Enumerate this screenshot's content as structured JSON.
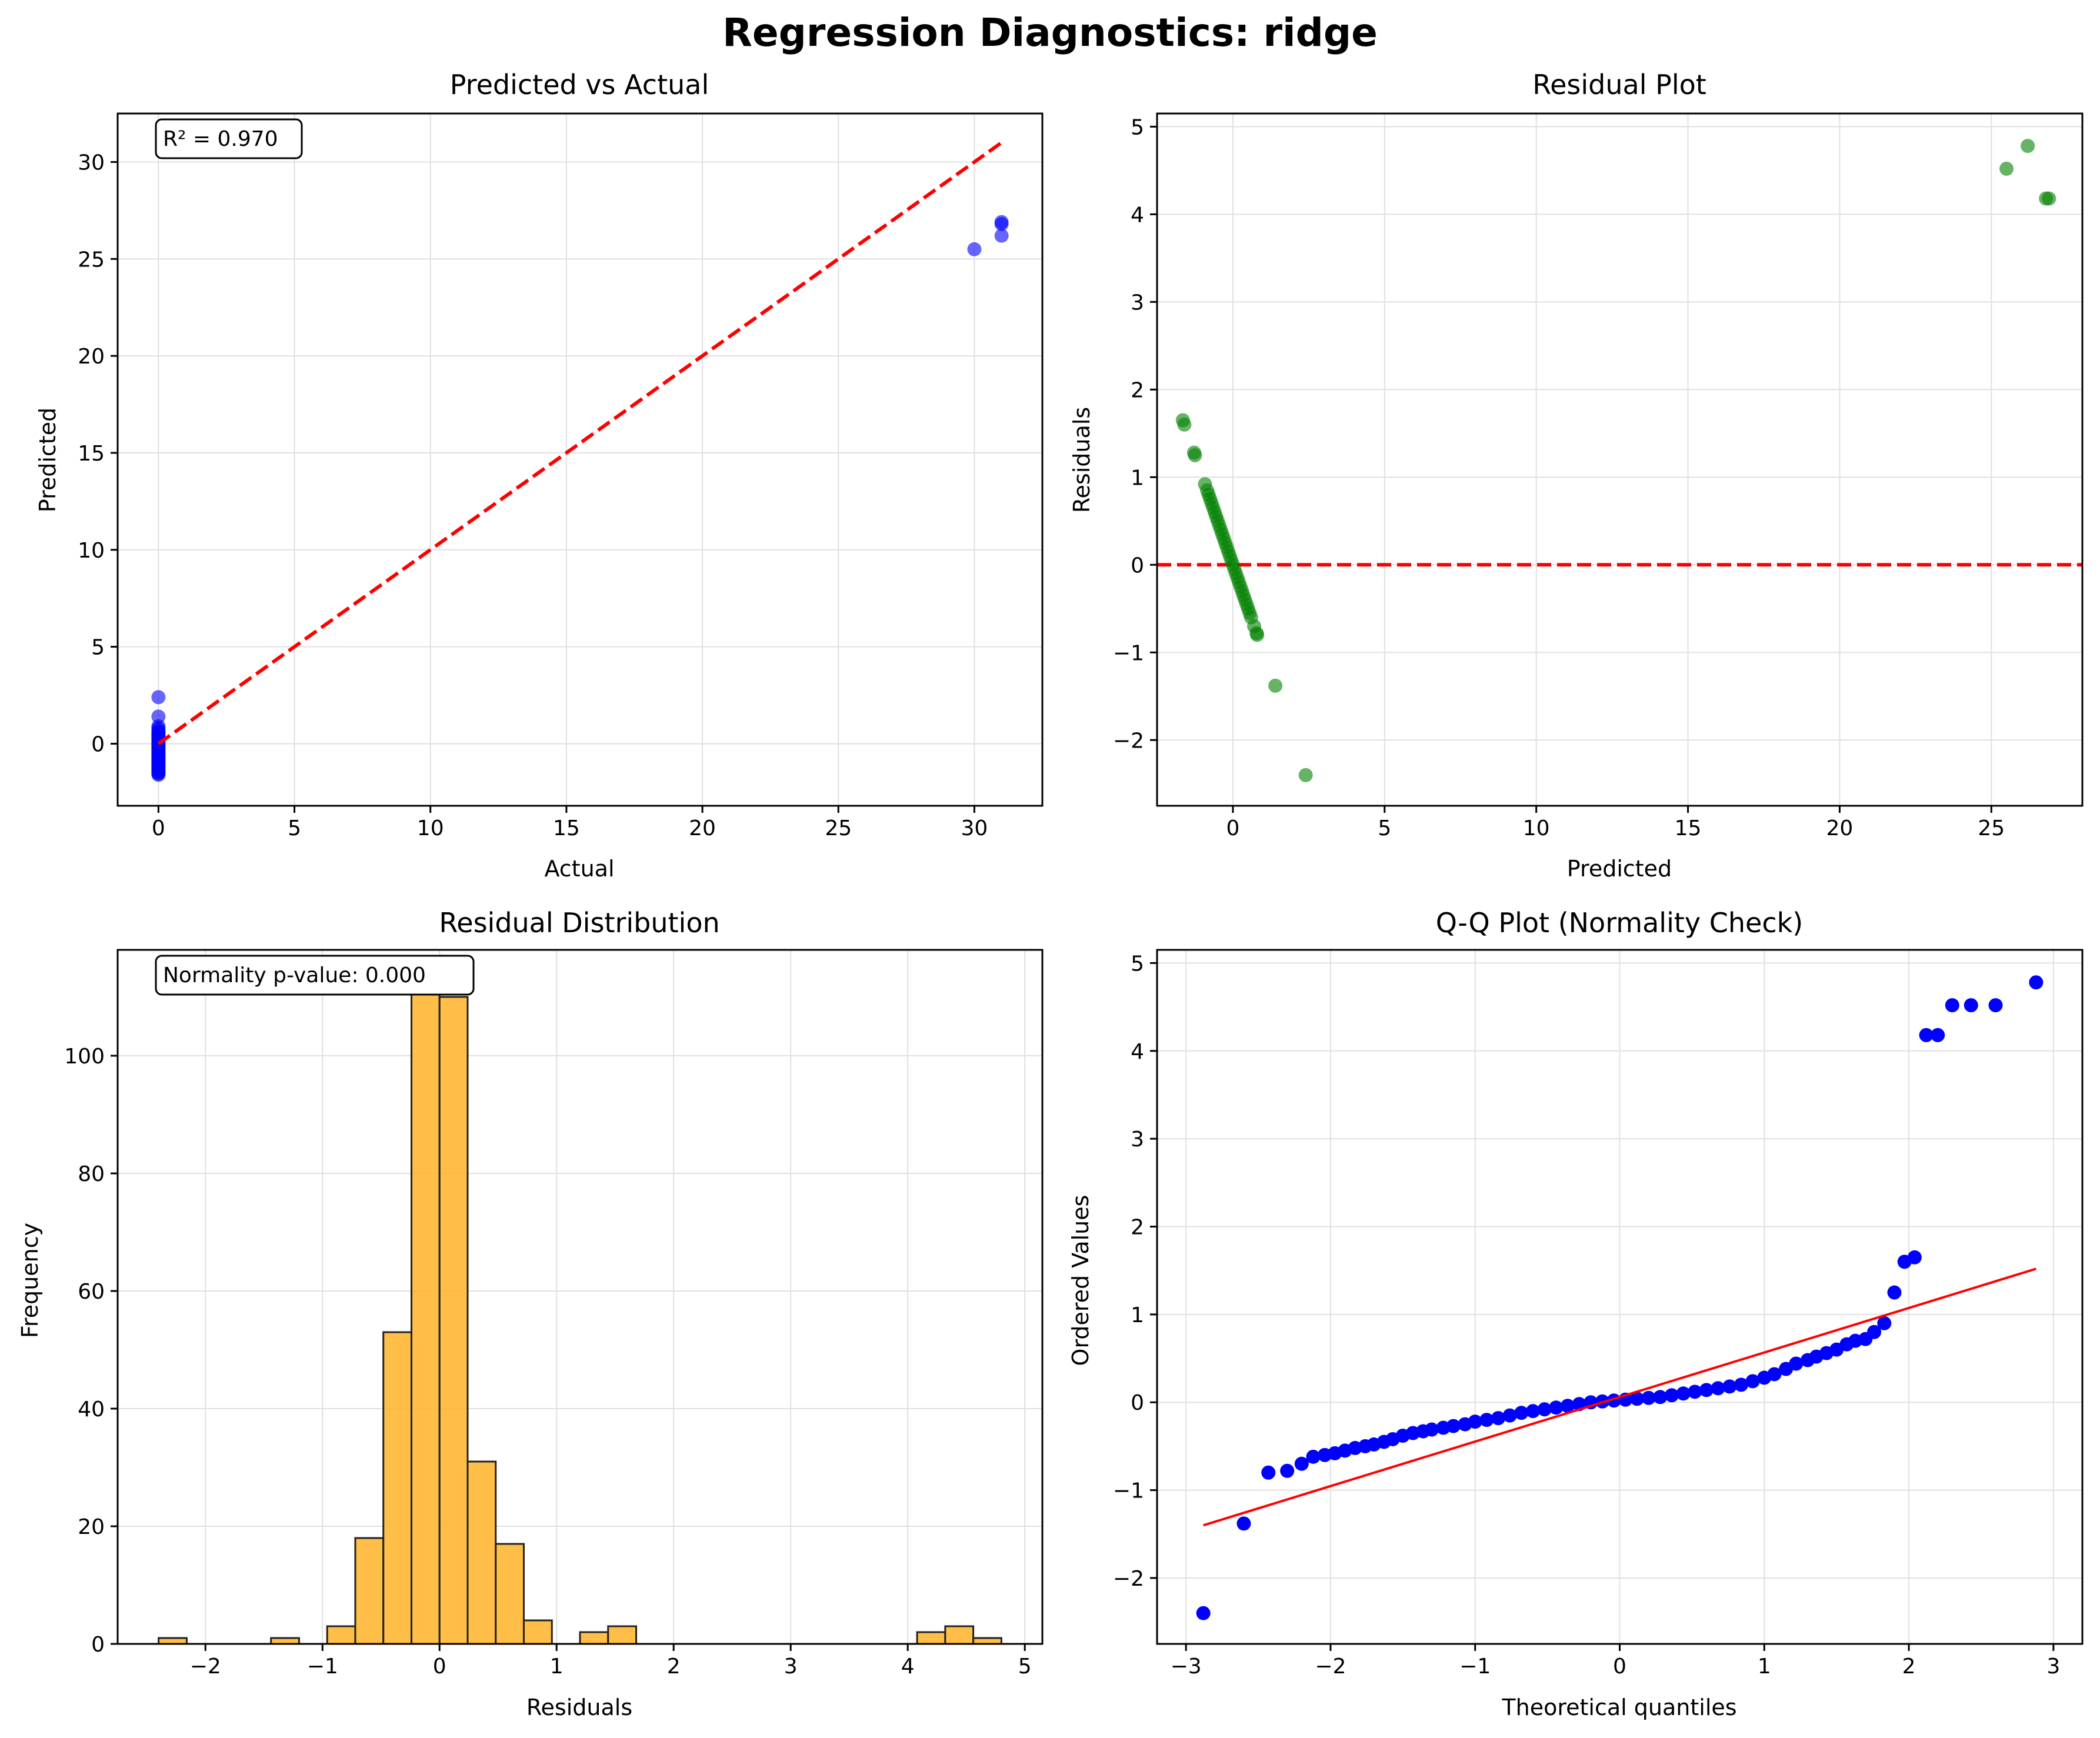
{
  "figure_title": "Regression Diagnostics: ridge",
  "colors": {
    "points_pva": "#0000ff",
    "points_resid": "#008000",
    "points_qq": "#0000ff",
    "reference_line": "#ff0000",
    "hist_fill": "#ffb733",
    "hist_edge": "#222222",
    "grid": "#e0e0e0"
  },
  "chart_data": [
    {
      "id": "pva",
      "type": "scatter",
      "title": "Predicted vs Actual",
      "xlabel": "Actual",
      "ylabel": "Predicted",
      "xlim": [
        -1.5,
        32.5
      ],
      "ylim": [
        -3.2,
        32.5
      ],
      "xticks": [
        0,
        5,
        10,
        15,
        20,
        25,
        30
      ],
      "yticks": [
        0,
        5,
        10,
        15,
        20,
        25,
        30
      ],
      "grid": true,
      "annotation": "R² = 0.970",
      "reference_line": {
        "style": "dashed",
        "x": [
          0,
          31
        ],
        "y": [
          0,
          31
        ]
      },
      "x": [
        0,
        0,
        0,
        0,
        0,
        0,
        0,
        0,
        0,
        0,
        0,
        0,
        0,
        0,
        0,
        0,
        0,
        0,
        0,
        0,
        0,
        0,
        0,
        0,
        0,
        0,
        0,
        0,
        0,
        0,
        0,
        0,
        0,
        0,
        0,
        0,
        0,
        0,
        0,
        0,
        0,
        0,
        0,
        0,
        0,
        0,
        0,
        0,
        0,
        0,
        30,
        31,
        31,
        31
      ],
      "y": [
        2.4,
        1.4,
        0.9,
        0.8,
        0.7,
        0.6,
        0.55,
        0.5,
        0.45,
        0.4,
        0.35,
        0.3,
        0.25,
        0.2,
        0.15,
        0.1,
        0.05,
        0.0,
        -0.05,
        -0.1,
        -0.15,
        -0.2,
        -0.25,
        -0.3,
        -0.35,
        -0.4,
        -0.45,
        -0.5,
        -0.55,
        -0.6,
        -0.65,
        -0.7,
        -0.75,
        -0.8,
        -0.85,
        -0.9,
        -0.95,
        -1.0,
        -1.05,
        -1.1,
        -1.15,
        -1.2,
        -1.25,
        -1.3,
        -1.35,
        -1.4,
        -1.45,
        -1.5,
        -1.55,
        -1.6,
        25.5,
        26.8,
        26.9,
        26.2
      ]
    },
    {
      "id": "residual",
      "type": "scatter",
      "title": "Residual Plot",
      "xlabel": "Predicted",
      "ylabel": "Residuals",
      "xlim": [
        -2.5,
        28.0
      ],
      "ylim": [
        -2.75,
        5.15
      ],
      "xticks": [
        0,
        5,
        10,
        15,
        20,
        25
      ],
      "yticks": [
        -2,
        -1,
        0,
        1,
        2,
        3,
        4,
        5
      ],
      "grid": true,
      "reference_line": {
        "style": "dashed",
        "y": 0
      },
      "x": [
        -1.65,
        -1.6,
        -1.28,
        -1.25,
        -0.92,
        -0.85,
        -0.8,
        -0.75,
        -0.7,
        -0.65,
        -0.6,
        -0.55,
        -0.5,
        -0.45,
        -0.4,
        -0.35,
        -0.3,
        -0.25,
        -0.2,
        -0.15,
        -0.1,
        -0.05,
        0.0,
        0.05,
        0.1,
        0.15,
        0.2,
        0.25,
        0.3,
        0.35,
        0.4,
        0.45,
        0.5,
        0.55,
        0.6,
        0.7,
        0.78,
        0.8,
        1.4,
        2.4,
        25.5,
        26.2,
        26.9,
        26.8
      ],
      "y": [
        1.65,
        1.6,
        1.28,
        1.25,
        0.92,
        0.85,
        0.8,
        0.75,
        0.7,
        0.65,
        0.6,
        0.55,
        0.5,
        0.45,
        0.4,
        0.35,
        0.3,
        0.25,
        0.2,
        0.15,
        0.1,
        0.05,
        0.0,
        -0.05,
        -0.1,
        -0.15,
        -0.2,
        -0.25,
        -0.3,
        -0.35,
        -0.4,
        -0.45,
        -0.5,
        -0.55,
        -0.6,
        -0.7,
        -0.78,
        -0.8,
        -1.38,
        -2.4,
        4.52,
        4.78,
        4.18,
        4.18
      ]
    },
    {
      "id": "hist",
      "type": "bar",
      "title": "Residual Distribution",
      "xlabel": "Residuals",
      "ylabel": "Frequency",
      "xlim": [
        -2.75,
        5.15
      ],
      "ylim": [
        0,
        118
      ],
      "xticks": [
        -2,
        -1,
        0,
        1,
        2,
        3,
        4,
        5
      ],
      "yticks": [
        0,
        20,
        40,
        60,
        80,
        100
      ],
      "grid": true,
      "annotation": "Normality p-value: 0.000",
      "bin_start": -2.4,
      "bin_width": 0.24,
      "counts": [
        1,
        0,
        0,
        0,
        1,
        0,
        3,
        18,
        53,
        112,
        110,
        31,
        17,
        4,
        0,
        2,
        3,
        0,
        0,
        0,
        0,
        0,
        0,
        0,
        0,
        0,
        0,
        2,
        3,
        1
      ]
    },
    {
      "id": "qq",
      "type": "scatter",
      "title": "Q-Q Plot (Normality Check)",
      "xlabel": "Theoretical quantiles",
      "ylabel": "Ordered Values",
      "xlim": [
        -3.2,
        3.2
      ],
      "ylim": [
        -2.75,
        5.15
      ],
      "xticks": [
        -3,
        -2,
        -1,
        0,
        1,
        2,
        3
      ],
      "yticks": [
        -2,
        -1,
        0,
        1,
        2,
        3,
        4,
        5
      ],
      "grid": true,
      "fit_line": {
        "x": [
          -2.88,
          2.88
        ],
        "y": [
          -1.4,
          1.52
        ]
      },
      "x": [
        -2.88,
        -2.6,
        -2.43,
        -2.3,
        -2.2,
        -2.12,
        -2.04,
        -1.97,
        -1.9,
        -1.83,
        -1.76,
        -1.7,
        -1.63,
        -1.57,
        -1.5,
        -1.43,
        -1.36,
        -1.3,
        -1.22,
        -1.15,
        -1.07,
        -1.0,
        -0.92,
        -0.84,
        -0.76,
        -0.68,
        -0.6,
        -0.52,
        -0.44,
        -0.36,
        -0.28,
        -0.2,
        -0.12,
        -0.04,
        0.04,
        0.12,
        0.2,
        0.28,
        0.36,
        0.44,
        0.52,
        0.6,
        0.68,
        0.76,
        0.84,
        0.92,
        1.0,
        1.07,
        1.15,
        1.22,
        1.3,
        1.36,
        1.43,
        1.5,
        1.57,
        1.63,
        1.7,
        1.76,
        1.83,
        1.9,
        1.97,
        2.04,
        2.12,
        2.2,
        2.3,
        2.43,
        2.6,
        2.88
      ],
      "y": [
        -2.4,
        -1.38,
        -0.8,
        -0.78,
        -0.7,
        -0.62,
        -0.6,
        -0.58,
        -0.55,
        -0.52,
        -0.5,
        -0.48,
        -0.45,
        -0.42,
        -0.38,
        -0.35,
        -0.33,
        -0.31,
        -0.29,
        -0.27,
        -0.25,
        -0.22,
        -0.2,
        -0.18,
        -0.15,
        -0.12,
        -0.1,
        -0.08,
        -0.06,
        -0.04,
        -0.02,
        0.0,
        0.01,
        0.02,
        0.03,
        0.04,
        0.05,
        0.06,
        0.08,
        0.1,
        0.12,
        0.14,
        0.16,
        0.18,
        0.2,
        0.24,
        0.28,
        0.32,
        0.38,
        0.44,
        0.48,
        0.52,
        0.56,
        0.6,
        0.66,
        0.7,
        0.72,
        0.8,
        0.9,
        1.25,
        1.6,
        1.65,
        4.18,
        4.18,
        4.52,
        4.52,
        4.52,
        4.78
      ]
    }
  ]
}
